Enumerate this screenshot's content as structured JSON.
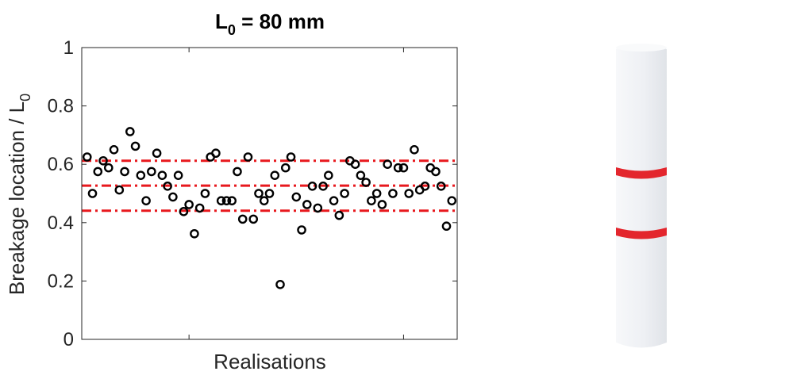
{
  "chart_data": {
    "type": "scatter",
    "title_main": "L",
    "title_sub": "0",
    "title_rest": " = 80 mm",
    "xlabel": "Realisations",
    "ylabel_main": "Breakage location / L",
    "ylabel_sub": "0",
    "ylim": [
      0,
      1
    ],
    "xlim": [
      0,
      70
    ],
    "yticks": [
      "0",
      "0.2",
      "0.4",
      "0.6",
      "0.8",
      "1"
    ],
    "xticks_unlabeled": [
      20,
      60
    ],
    "grid": false,
    "marker": "open-circle",
    "marker_color": "#000000",
    "reference_lines": [
      {
        "y": 0.612,
        "style": "dash-dot",
        "color": "#e8181d"
      },
      {
        "y": 0.527,
        "style": "dash-dot",
        "color": "#e8181d"
      },
      {
        "y": 0.441,
        "style": "dash-dot",
        "color": "#e8181d"
      }
    ],
    "x": [
      1,
      2,
      3,
      4,
      5,
      6,
      7,
      8,
      9,
      10,
      11,
      12,
      13,
      14,
      15,
      16,
      17,
      18,
      19,
      20,
      21,
      22,
      23,
      24,
      25,
      26,
      27,
      28,
      29,
      30,
      31,
      32,
      33,
      34,
      35,
      36,
      37,
      38,
      39,
      40,
      41,
      42,
      43,
      44,
      45,
      46,
      47,
      48,
      49,
      50,
      51,
      52,
      53,
      54,
      55,
      56,
      57,
      58,
      59,
      60,
      61,
      62,
      63,
      64,
      65,
      66,
      67,
      68,
      69
    ],
    "y": [
      0.625,
      0.5,
      0.575,
      0.612,
      0.588,
      0.65,
      0.512,
      0.575,
      0.712,
      0.662,
      0.562,
      0.475,
      0.575,
      0.638,
      0.562,
      0.525,
      0.488,
      0.562,
      0.438,
      0.462,
      0.362,
      0.45,
      0.5,
      0.625,
      0.638,
      0.475,
      0.475,
      0.475,
      0.575,
      0.412,
      0.625,
      0.412,
      0.5,
      0.475,
      0.5,
      0.562,
      0.188,
      0.588,
      0.625,
      0.488,
      0.375,
      0.462,
      0.525,
      0.45,
      0.525,
      0.562,
      0.475,
      0.425,
      0.5,
      0.612,
      0.6,
      0.562,
      0.538,
      0.475,
      0.5,
      0.462,
      0.6,
      0.5,
      0.588,
      0.588,
      0.5,
      0.65,
      0.512,
      0.525,
      0.588,
      0.575,
      0.525,
      0.388,
      0.475
    ]
  },
  "illustration": {
    "rod_color": "#f1f3f6",
    "band_color": "#e3262d"
  }
}
